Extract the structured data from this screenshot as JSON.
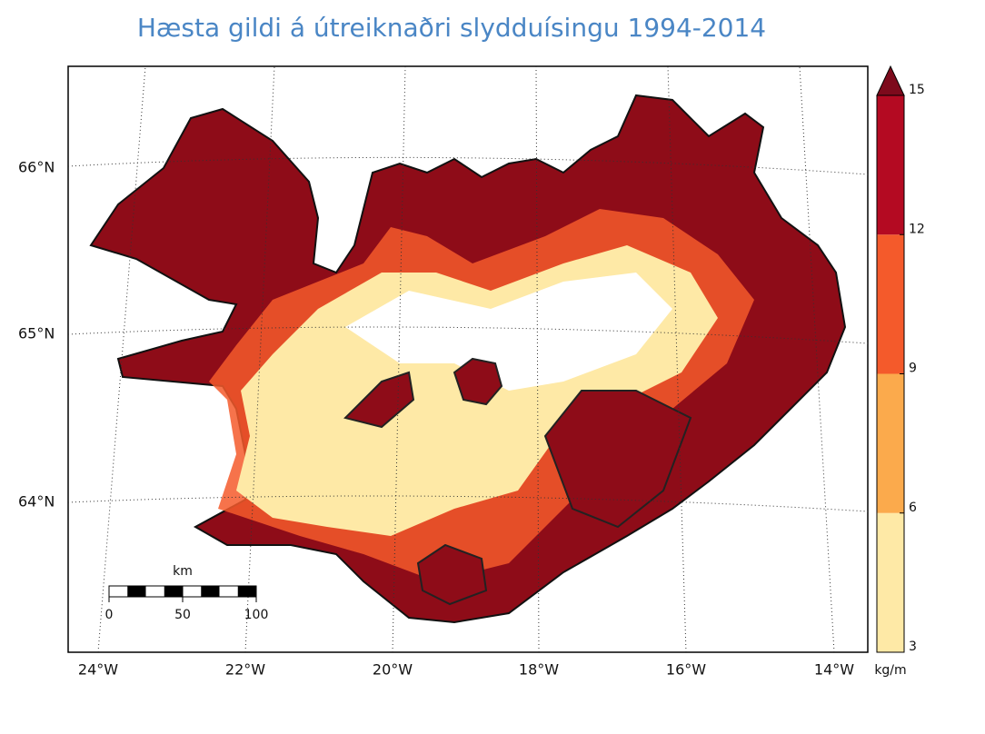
{
  "title": "Hæsta gildi á útreiknaðri slydduísingu 1994-2014",
  "map": {
    "lat_labels": [
      "66°N",
      "65°N",
      "64°N"
    ],
    "lon_labels": [
      "24°W",
      "22°W",
      "20°W",
      "18°W",
      "16°W",
      "14°W"
    ],
    "scale_bar": {
      "unit": "km",
      "ticks": [
        0,
        50,
        100
      ]
    }
  },
  "colorbar": {
    "label": "kg/m",
    "lim": [
      3,
      15
    ],
    "ticks": [
      3,
      6,
      9,
      12,
      15
    ],
    "colors": [
      "#fee9a6",
      "#fbaa4c",
      "#f45a2b",
      "#b40a22"
    ],
    "extend_color": "#7d0a1c"
  }
}
